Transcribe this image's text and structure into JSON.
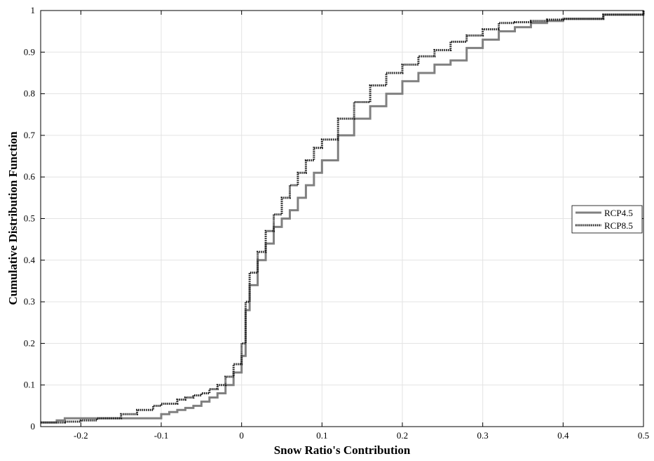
{
  "chart_data": {
    "type": "line",
    "title": "",
    "xlabel": "Snow Ratio's Contribution",
    "ylabel": "Cumulative Distribution Function",
    "xlim": [
      -0.25,
      0.5
    ],
    "ylim": [
      0,
      1
    ],
    "xticks": [
      -0.2,
      -0.1,
      0,
      0.1,
      0.2,
      0.3,
      0.4,
      0.5
    ],
    "xtick_labels": [
      "-0.2",
      "-0.1",
      "0",
      "0.1",
      "0.2",
      "0.3",
      "0.4",
      "0.5"
    ],
    "yticks": [
      0,
      0.1,
      0.2,
      0.3,
      0.4,
      0.5,
      0.6,
      0.7,
      0.8,
      0.9,
      1
    ],
    "ytick_labels": [
      "0",
      "0.1",
      "0.2",
      "0.3",
      "0.4",
      "0.5",
      "0.6",
      "0.7",
      "0.8",
      "0.9",
      "1"
    ],
    "grid": true,
    "legend_position": "right",
    "series": [
      {
        "name": "RCP4.5",
        "color": "#808080",
        "line_style": "solid",
        "x": [
          -0.25,
          -0.23,
          -0.22,
          -0.2,
          -0.18,
          -0.15,
          -0.13,
          -0.1,
          -0.09,
          -0.08,
          -0.07,
          -0.06,
          -0.05,
          -0.04,
          -0.03,
          -0.02,
          -0.01,
          0.0,
          0.005,
          0.01,
          0.02,
          0.03,
          0.04,
          0.05,
          0.06,
          0.07,
          0.08,
          0.09,
          0.1,
          0.12,
          0.14,
          0.16,
          0.18,
          0.2,
          0.22,
          0.24,
          0.26,
          0.28,
          0.3,
          0.32,
          0.34,
          0.36,
          0.38,
          0.4,
          0.45,
          0.5
        ],
        "y": [
          0.01,
          0.015,
          0.02,
          0.02,
          0.02,
          0.02,
          0.02,
          0.03,
          0.035,
          0.04,
          0.045,
          0.05,
          0.06,
          0.07,
          0.08,
          0.1,
          0.13,
          0.17,
          0.28,
          0.34,
          0.4,
          0.44,
          0.48,
          0.5,
          0.52,
          0.55,
          0.58,
          0.61,
          0.64,
          0.7,
          0.74,
          0.77,
          0.8,
          0.83,
          0.85,
          0.87,
          0.88,
          0.91,
          0.93,
          0.95,
          0.96,
          0.97,
          0.975,
          0.98,
          0.99,
          1.0
        ]
      },
      {
        "name": "RCP8.5",
        "color": "#1a1a1a",
        "line_style": "dotted",
        "x": [
          -0.25,
          -0.22,
          -0.2,
          -0.18,
          -0.15,
          -0.13,
          -0.11,
          -0.1,
          -0.08,
          -0.07,
          -0.06,
          -0.05,
          -0.04,
          -0.03,
          -0.02,
          -0.01,
          0.0,
          0.005,
          0.01,
          0.02,
          0.03,
          0.04,
          0.05,
          0.06,
          0.07,
          0.08,
          0.09,
          0.1,
          0.12,
          0.14,
          0.16,
          0.18,
          0.2,
          0.22,
          0.24,
          0.26,
          0.28,
          0.3,
          0.32,
          0.34,
          0.36,
          0.38,
          0.4,
          0.45,
          0.5
        ],
        "y": [
          0.01,
          0.012,
          0.015,
          0.02,
          0.03,
          0.04,
          0.05,
          0.055,
          0.065,
          0.07,
          0.075,
          0.08,
          0.09,
          0.1,
          0.12,
          0.15,
          0.2,
          0.3,
          0.37,
          0.42,
          0.47,
          0.51,
          0.55,
          0.58,
          0.61,
          0.64,
          0.67,
          0.69,
          0.74,
          0.78,
          0.82,
          0.85,
          0.87,
          0.89,
          0.905,
          0.925,
          0.94,
          0.955,
          0.97,
          0.972,
          0.975,
          0.978,
          0.98,
          0.99,
          1.0
        ]
      }
    ]
  }
}
